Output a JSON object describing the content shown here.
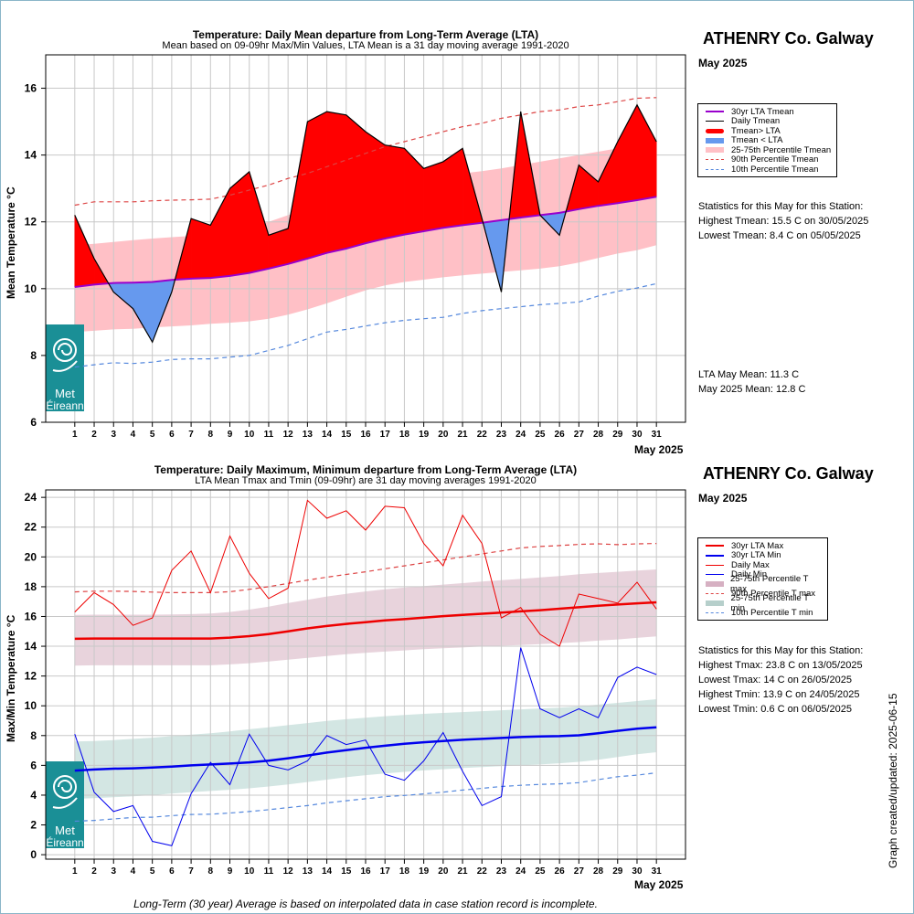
{
  "footnote": "Long-Term (30 year) Average is based on interpolated data in case station record is incomplete.",
  "updated_label": "Graph created/updated:",
  "updated_date": "2025-06-15",
  "logo": {
    "line1": "Met",
    "line2": "Éireann"
  },
  "colors": {
    "frame": "#8ab6c8",
    "logo_bg": "#1a8f96"
  },
  "chart_data": [
    {
      "type": "line",
      "title": "Temperature: Daily Mean departure from Long-Term Average (LTA)",
      "subtitle": "Mean based on 09-09hr Max/Min Values, LTA Mean is a 31 day moving average 1991-2020",
      "station": "ATHENRY Co. Galway",
      "month_label": "May 2025",
      "xlabel": "May 2025",
      "ylabel": "Mean Temperature °C",
      "x": [
        1,
        2,
        3,
        4,
        5,
        6,
        7,
        8,
        9,
        10,
        11,
        12,
        13,
        14,
        15,
        16,
        17,
        18,
        19,
        20,
        21,
        22,
        23,
        24,
        25,
        26,
        27,
        28,
        29,
        30,
        31
      ],
      "xlim": [
        -0.5,
        32.5
      ],
      "ylim": [
        6,
        17
      ],
      "yticks": [
        6,
        8,
        10,
        12,
        14,
        16
      ],
      "grid": true,
      "legend_position": "right",
      "series": {
        "daily_tmean": [
          12.2,
          10.9,
          9.9,
          9.4,
          8.4,
          9.9,
          12.1,
          11.9,
          13.0,
          13.5,
          11.6,
          11.8,
          15.0,
          15.3,
          15.2,
          14.7,
          14.3,
          14.2,
          13.6,
          13.8,
          14.2,
          12.1,
          9.9,
          15.3,
          12.2,
          11.6,
          13.7,
          13.2,
          14.4,
          15.5,
          14.4
        ],
        "lta_tmean": [
          10.05,
          10.12,
          10.17,
          10.18,
          10.2,
          10.26,
          10.3,
          10.32,
          10.38,
          10.47,
          10.6,
          10.74,
          10.9,
          11.07,
          11.2,
          11.36,
          11.5,
          11.62,
          11.72,
          11.82,
          11.9,
          11.97,
          12.05,
          12.13,
          12.2,
          12.27,
          12.38,
          12.48,
          12.56,
          12.65,
          12.75
        ],
        "p25_tmean": [
          8.7,
          8.74,
          8.78,
          8.8,
          8.84,
          8.87,
          8.9,
          8.95,
          8.98,
          9.02,
          9.1,
          9.22,
          9.38,
          9.56,
          9.76,
          9.95,
          10.1,
          10.2,
          10.27,
          10.34,
          10.4,
          10.45,
          10.5,
          10.55,
          10.6,
          10.67,
          10.78,
          10.92,
          11.05,
          11.15,
          11.3
        ],
        "p75_tmean": [
          11.3,
          11.34,
          11.4,
          11.45,
          11.5,
          11.54,
          11.58,
          11.62,
          11.7,
          11.82,
          12.0,
          12.2,
          12.4,
          12.6,
          12.78,
          12.94,
          13.1,
          13.2,
          13.3,
          13.38,
          13.45,
          13.52,
          13.6,
          13.7,
          13.8,
          13.9,
          14.0,
          14.1,
          14.2,
          14.3,
          14.4
        ],
        "p90_tmean": [
          12.5,
          12.6,
          12.6,
          12.6,
          12.63,
          12.65,
          12.66,
          12.68,
          12.8,
          12.95,
          13.1,
          13.3,
          13.45,
          13.65,
          13.85,
          14.05,
          14.25,
          14.4,
          14.55,
          14.7,
          14.85,
          14.95,
          15.1,
          15.2,
          15.3,
          15.35,
          15.45,
          15.5,
          15.6,
          15.7,
          15.72
        ],
        "p10_tmean": [
          7.65,
          7.72,
          7.78,
          7.76,
          7.8,
          7.88,
          7.9,
          7.9,
          7.95,
          8.0,
          8.15,
          8.3,
          8.5,
          8.7,
          8.78,
          8.88,
          8.98,
          9.05,
          9.1,
          9.14,
          9.26,
          9.34,
          9.4,
          9.46,
          9.52,
          9.56,
          9.6,
          9.78,
          9.92,
          10.02,
          10.15
        ]
      },
      "legend": [
        "30yr LTA Tmean",
        "Daily Tmean",
        "Tmean> LTA",
        "Tmean < LTA",
        "25-75th Percentile Tmean",
        "90th Percentile Tmean",
        "10th Percentile Tmean"
      ],
      "series_colors": {
        "lta": "#9900cc",
        "daily": "#000000",
        "above": "#ff0000",
        "below": "#6699ee",
        "band": "#ffc0c6",
        "p90": "#dd4444",
        "p10": "#5588dd"
      },
      "stats_header": "Statistics for this May for this Station:",
      "stats": [
        "Highest Tmean: 15.5 C on 30/05/2025",
        "Lowest Tmean: 8.4 C on 05/05/2025"
      ],
      "means": [
        "LTA May Mean: 11.3 C",
        "May 2025 Mean: 12.8 C"
      ]
    },
    {
      "type": "line",
      "title": "Temperature: Daily Maximum, Minimum departure from Long-Term Average (LTA)",
      "subtitle": "LTA Mean Tmax and Tmin (09-09hr) are 31 day moving averages 1991-2020",
      "station": "ATHENRY Co. Galway",
      "month_label": "May 2025",
      "xlabel": "May 2025",
      "ylabel": "Max/Min Temperature °C",
      "x": [
        1,
        2,
        3,
        4,
        5,
        6,
        7,
        8,
        9,
        10,
        11,
        12,
        13,
        14,
        15,
        16,
        17,
        18,
        19,
        20,
        21,
        22,
        23,
        24,
        25,
        26,
        27,
        28,
        29,
        30,
        31
      ],
      "xlim": [
        -0.5,
        32.5
      ],
      "ylim": [
        -0.3,
        24.5
      ],
      "yticks": [
        0,
        2,
        4,
        6,
        8,
        10,
        12,
        14,
        16,
        18,
        20,
        22,
        24
      ],
      "grid": true,
      "legend_position": "right",
      "series": {
        "daily_max": [
          16.3,
          17.6,
          16.8,
          15.4,
          15.9,
          19.1,
          20.4,
          17.6,
          21.4,
          18.9,
          17.2,
          17.9,
          23.8,
          22.6,
          23.1,
          21.8,
          23.4,
          23.3,
          20.9,
          19.4,
          22.8,
          20.9,
          15.9,
          16.6,
          14.8,
          14.0,
          17.5,
          17.2,
          16.9,
          18.3,
          16.5
        ],
        "daily_min": [
          8.1,
          4.2,
          2.9,
          3.3,
          0.9,
          0.6,
          4.1,
          6.2,
          4.7,
          8.1,
          6.0,
          5.7,
          6.3,
          8.0,
          7.4,
          7.7,
          5.4,
          5.0,
          6.3,
          8.2,
          5.6,
          3.3,
          3.9,
          13.9,
          9.8,
          9.2,
          9.8,
          9.2,
          11.9,
          12.6,
          12.1
        ],
        "lta_max": [
          14.5,
          14.52,
          14.52,
          14.52,
          14.52,
          14.52,
          14.52,
          14.52,
          14.58,
          14.68,
          14.82,
          15.0,
          15.2,
          15.36,
          15.5,
          15.62,
          15.74,
          15.82,
          15.92,
          16.02,
          16.1,
          16.18,
          16.26,
          16.34,
          16.42,
          16.52,
          16.62,
          16.72,
          16.8,
          16.88,
          16.95
        ],
        "lta_min": [
          5.65,
          5.72,
          5.78,
          5.8,
          5.85,
          5.92,
          6.0,
          6.06,
          6.12,
          6.2,
          6.32,
          6.48,
          6.66,
          6.86,
          7.02,
          7.18,
          7.32,
          7.45,
          7.55,
          7.64,
          7.72,
          7.78,
          7.84,
          7.9,
          7.94,
          7.96,
          8.02,
          8.16,
          8.32,
          8.46,
          8.56
        ],
        "p25_max": [
          12.7,
          12.72,
          12.72,
          12.72,
          12.72,
          12.72,
          12.72,
          12.72,
          12.78,
          12.86,
          12.98,
          13.1,
          13.22,
          13.34,
          13.46,
          13.56,
          13.64,
          13.72,
          13.8,
          13.86,
          13.92,
          13.98,
          14.04,
          14.08,
          14.14,
          14.2,
          14.28,
          14.38,
          14.46,
          14.56,
          14.66
        ],
        "p75_max": [
          16.1,
          16.12,
          16.12,
          16.12,
          16.12,
          16.14,
          16.16,
          16.2,
          16.3,
          16.46,
          16.66,
          16.9,
          17.12,
          17.34,
          17.52,
          17.68,
          17.82,
          17.94,
          18.04,
          18.14,
          18.24,
          18.34,
          18.44,
          18.52,
          18.62,
          18.72,
          18.84,
          18.92,
          19.0,
          19.08,
          19.16
        ],
        "p25_min": [
          3.75,
          3.8,
          3.86,
          3.92,
          4.0,
          4.1,
          4.2,
          4.28,
          4.36,
          4.46,
          4.58,
          4.72,
          4.88,
          5.04,
          5.2,
          5.34,
          5.46,
          5.56,
          5.66,
          5.74,
          5.82,
          5.88,
          5.94,
          6.0,
          6.06,
          6.14,
          6.24,
          6.38,
          6.56,
          6.74,
          6.88
        ],
        "p75_min": [
          7.6,
          7.64,
          7.7,
          7.78,
          7.86,
          7.96,
          8.06,
          8.16,
          8.28,
          8.42,
          8.56,
          8.7,
          8.84,
          8.98,
          9.1,
          9.2,
          9.3,
          9.38,
          9.46,
          9.52,
          9.58,
          9.64,
          9.7,
          9.76,
          9.82,
          9.88,
          9.96,
          10.08,
          10.2,
          10.32,
          10.44
        ],
        "p90_max": [
          17.65,
          17.7,
          17.7,
          17.68,
          17.64,
          17.6,
          17.6,
          17.6,
          17.66,
          17.82,
          18.0,
          18.22,
          18.44,
          18.64,
          18.82,
          19.0,
          19.2,
          19.4,
          19.6,
          19.8,
          20.0,
          20.2,
          20.4,
          20.6,
          20.7,
          20.76,
          20.84,
          20.88,
          20.82,
          20.88,
          20.9
        ],
        "p10_min": [
          2.25,
          2.3,
          2.4,
          2.5,
          2.52,
          2.62,
          2.7,
          2.72,
          2.8,
          2.9,
          3.02,
          3.16,
          3.3,
          3.48,
          3.62,
          3.76,
          3.9,
          3.98,
          4.08,
          4.2,
          4.34,
          4.46,
          4.58,
          4.66,
          4.72,
          4.76,
          4.84,
          5.04,
          5.24,
          5.34,
          5.5
        ]
      },
      "legend": [
        "30yr LTA Max",
        "30yr LTA Min",
        "Daily Max",
        "Daily Min",
        "25-75th Percentile T max",
        "90th Percentile T max",
        "25-75th Percentile T min",
        "10th Percentile T min"
      ],
      "series_colors": {
        "lta_max": "#ee0000",
        "lta_min": "#0000ee",
        "daily_max": "#ee0000",
        "daily_min": "#0000ee",
        "band_max": "#e8d3dc",
        "p90": "#dd4444",
        "band_min": "#d3e6e3",
        "p10": "#5588dd"
      },
      "stats_header": "Statistics for this May for this Station:",
      "stats": [
        "Highest Tmax: 23.8 C on 13/05/2025",
        "Lowest Tmax: 14 C on 26/05/2025",
        "Highest Tmin: 13.9 C on 24/05/2025",
        "Lowest Tmin: 0.6 C on 06/05/2025"
      ]
    }
  ]
}
